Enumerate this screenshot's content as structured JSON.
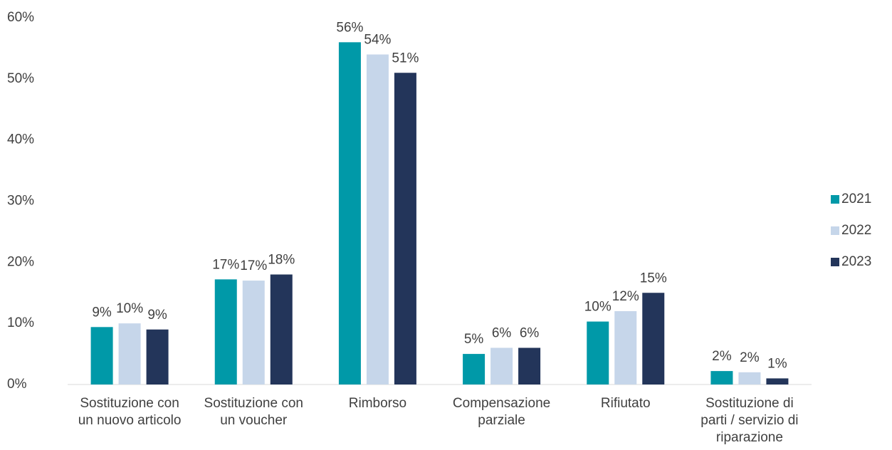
{
  "chart_data": {
    "type": "bar",
    "categories": [
      "Sostituzione con un nuovo articolo",
      "Sostituzione con un voucher",
      "Rimborso",
      "Compensazione parziale",
      "Rifiutato",
      "Sostituzione di parti / servizio di riparazione"
    ],
    "series": [
      {
        "name": "2021",
        "color": "#0099a8",
        "values": [
          9.4,
          17.2,
          56,
          5,
          10.3,
          2.2
        ],
        "value_labels": [
          "9%",
          "17%",
          "56%",
          "5%",
          "10%",
          "2%"
        ]
      },
      {
        "name": "2022",
        "color": "#c6d6ea",
        "values": [
          10,
          17,
          54,
          6,
          12,
          2
        ],
        "value_labels": [
          "10%",
          "17%",
          "54%",
          "6%",
          "12%",
          "2%"
        ]
      },
      {
        "name": "2023",
        "color": "#23355a",
        "values": [
          9,
          18,
          51,
          6,
          15,
          1
        ],
        "value_labels": [
          "9%",
          "18%",
          "51%",
          "6%",
          "15%",
          "1%"
        ]
      }
    ],
    "ylim": [
      0,
      60
    ],
    "yticks": [
      {
        "value": 0,
        "label": "0%"
      },
      {
        "value": 10,
        "label": "10%"
      },
      {
        "value": 20,
        "label": "20%"
      },
      {
        "value": 30,
        "label": "30%"
      },
      {
        "value": 40,
        "label": "40%"
      },
      {
        "value": 50,
        "label": "50%"
      },
      {
        "value": 60,
        "label": "60%"
      }
    ],
    "grid": false,
    "legend": "right"
  }
}
